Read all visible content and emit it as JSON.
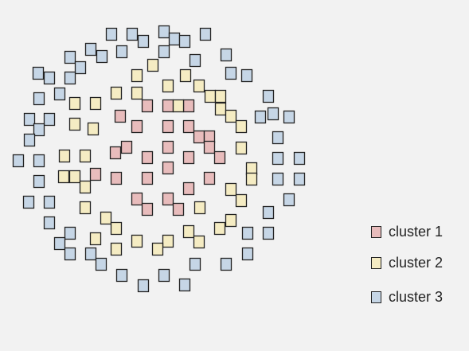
{
  "legend": [
    {
      "label": "cluster 1",
      "color": "#e8bcbc"
    },
    {
      "label": "cluster 2",
      "color": "#f5ecc3"
    },
    {
      "label": "cluster 3",
      "color": "#c6d6e6"
    }
  ]
}
